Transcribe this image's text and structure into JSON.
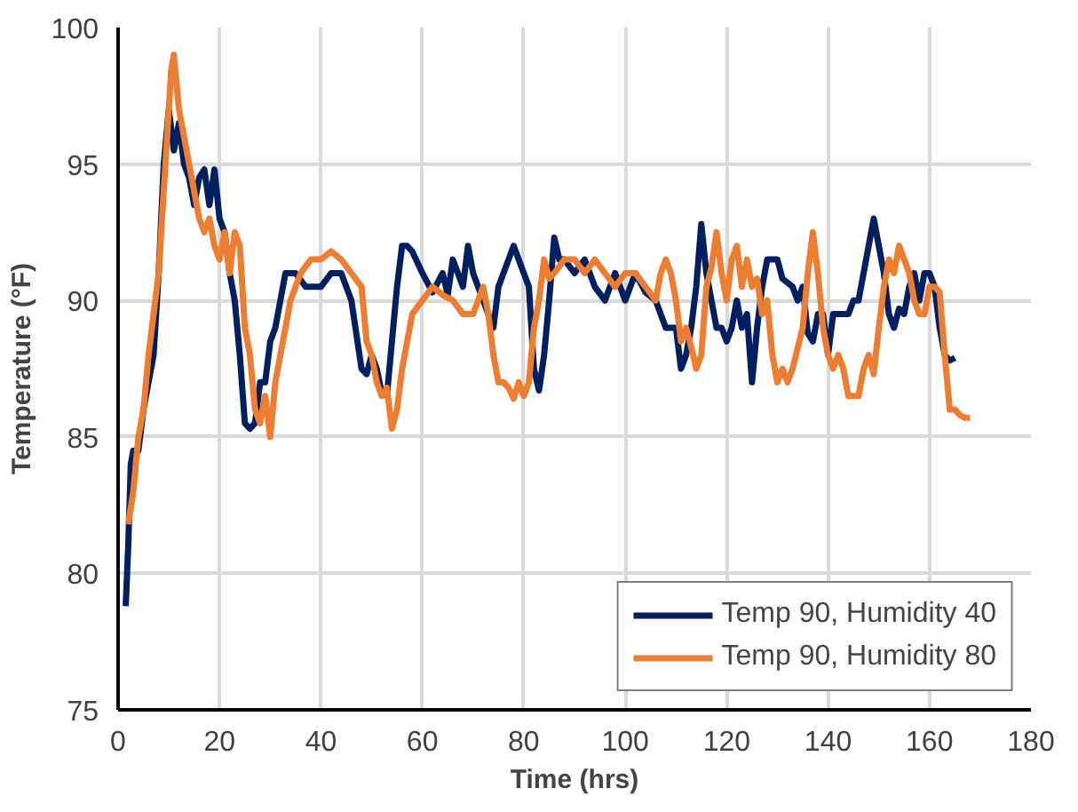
{
  "chart_data": {
    "type": "line",
    "xlabel": "Time (hrs)",
    "ylabel": "Temperature (°F)",
    "xlim": [
      0,
      180
    ],
    "xticks": [
      0,
      20,
      40,
      60,
      80,
      100,
      120,
      140,
      160,
      180
    ],
    "ylim": [
      75,
      100
    ],
    "yticks": [
      75,
      80,
      85,
      90,
      95,
      100
    ],
    "grid": true,
    "legend": "bottom right",
    "line_style": "solid",
    "series": [
      {
        "name": "Temp 90, Humidity 40",
        "color": "#002060",
        "x": [
          1.5,
          2,
          2.5,
          3,
          4,
          5,
          6,
          7,
          8,
          9,
          10,
          11,
          12,
          13,
          14,
          15,
          16,
          17,
          18,
          19,
          20,
          21,
          22,
          23,
          24,
          25,
          26,
          27,
          28,
          29,
          30,
          31,
          32,
          33,
          35,
          37,
          40,
          42,
          44,
          46,
          48,
          49,
          50,
          51,
          52,
          53,
          54,
          55,
          56,
          57,
          58,
          60,
          62,
          64,
          65,
          66,
          68,
          69,
          70,
          72,
          74,
          75,
          77,
          78,
          80,
          81,
          82,
          83,
          84,
          85,
          86,
          87,
          88,
          90,
          92,
          94,
          96,
          98,
          100,
          102,
          104,
          106,
          108,
          110,
          111,
          112,
          113,
          114,
          115,
          116,
          117,
          118,
          119,
          120,
          121,
          122,
          123,
          124,
          125,
          126,
          127,
          128,
          130,
          131,
          133,
          134,
          135,
          136,
          137,
          138,
          139,
          140,
          141,
          142,
          144,
          145,
          146,
          148,
          149,
          150,
          151,
          152,
          153,
          154,
          155,
          156,
          157,
          158,
          159,
          160,
          161,
          162,
          163,
          164,
          165
        ],
        "values": [
          78.8,
          81,
          84,
          84.5,
          84.5,
          86,
          87,
          88,
          91,
          95,
          97,
          95.5,
          96.5,
          95,
          94.5,
          93.5,
          94.5,
          94.8,
          93.5,
          94.8,
          93,
          92.5,
          91,
          90,
          88,
          85.5,
          85.3,
          85.5,
          87,
          87,
          88.5,
          89,
          90,
          91,
          91,
          90.5,
          90.5,
          91,
          91,
          90,
          87.5,
          87.3,
          88,
          87.5,
          86.6,
          86.5,
          88.5,
          90.5,
          92,
          92,
          91.8,
          91,
          90.3,
          91,
          90.2,
          91.5,
          90.5,
          92,
          91,
          90,
          89,
          90.5,
          91.5,
          92,
          91,
          90.5,
          87.5,
          86.7,
          88,
          90,
          92.3,
          91.5,
          91.5,
          91,
          91.5,
          90.5,
          90,
          91,
          90,
          91,
          90.3,
          90,
          89,
          89,
          87.5,
          88,
          89,
          90.5,
          92.8,
          91,
          90,
          89,
          89,
          88.5,
          89,
          90,
          89,
          89.5,
          87,
          89,
          90.5,
          91.5,
          91.5,
          90.8,
          90.5,
          90,
          90.5,
          88.8,
          88.5,
          89.5,
          89.5,
          88,
          89.5,
          89.5,
          89.5,
          90,
          90,
          92,
          93,
          92,
          91,
          89.5,
          89,
          89.7,
          89.5,
          90.5,
          91,
          90,
          91,
          91,
          90.5,
          89,
          88,
          87.8,
          87.9
        ]
      },
      {
        "name": "Temp 90, Humidity 80",
        "color": "#ed7d31",
        "x": [
          2,
          3,
          4,
          5,
          6,
          7,
          8,
          9,
          10,
          10.5,
          11,
          12,
          13,
          14,
          15,
          16,
          17,
          18,
          19,
          20,
          21,
          22,
          23,
          24,
          25,
          26,
          27,
          28,
          29,
          30,
          31,
          32,
          33,
          34,
          35,
          36,
          38,
          40,
          42,
          44,
          46,
          48,
          49,
          50,
          51,
          52,
          53,
          54,
          55,
          56,
          57,
          58,
          60,
          62,
          64,
          66,
          68,
          70,
          72,
          73,
          74,
          75,
          76,
          77,
          78,
          79,
          80,
          81,
          82,
          83,
          84,
          85,
          86,
          88,
          90,
          92,
          94,
          96,
          98,
          100,
          102,
          104,
          106,
          107,
          108,
          109,
          110,
          111,
          112,
          113,
          114,
          115,
          116,
          117,
          118,
          119,
          120,
          121,
          122,
          123,
          124,
          125,
          126,
          127,
          128,
          129,
          130,
          131,
          132,
          133,
          135,
          136,
          137,
          138,
          139,
          140,
          141,
          142,
          143,
          144,
          145,
          146,
          147,
          148,
          149,
          150,
          151,
          152,
          153,
          154,
          155,
          156,
          157,
          158,
          159,
          160,
          161,
          162,
          163,
          164,
          165,
          166,
          167,
          168
        ],
        "values": [
          81.8,
          83,
          85,
          86,
          88,
          89.5,
          91,
          94,
          97,
          98.5,
          99,
          97,
          96,
          95,
          94,
          93,
          92.5,
          93,
          92,
          91.5,
          92.5,
          91,
          92.5,
          92,
          89,
          88,
          86,
          85.5,
          86.5,
          85,
          87,
          88,
          89,
          90,
          90.5,
          91,
          91.5,
          91.5,
          91.8,
          91.5,
          91,
          90.5,
          88.5,
          88,
          87,
          86.5,
          86.8,
          85.3,
          86,
          87.5,
          88.5,
          89.5,
          90,
          90.5,
          90.2,
          90,
          89.5,
          89.5,
          90.5,
          89.5,
          88,
          87,
          87,
          86.8,
          86.4,
          87,
          86.5,
          87,
          89,
          90,
          91.5,
          90.8,
          91,
          91.5,
          91.5,
          91,
          91.5,
          91,
          90.5,
          91,
          91,
          90.5,
          90,
          91,
          91.5,
          91,
          90,
          88.5,
          89,
          88.3,
          87.5,
          88,
          90.5,
          91.2,
          92.5,
          91,
          90,
          91.5,
          92,
          90.5,
          91.5,
          90.5,
          90.8,
          89.5,
          90,
          88,
          87,
          87.5,
          87,
          87.5,
          89,
          91,
          92.5,
          91,
          89,
          88,
          87.5,
          88,
          87.5,
          86.5,
          86.5,
          86.5,
          87.5,
          88,
          87.3,
          89,
          90.5,
          91.5,
          91,
          92,
          91.5,
          91,
          90,
          89.5,
          89.5,
          90.5,
          90.5,
          90.3,
          88,
          86,
          86,
          85.8,
          85.7,
          85.7
        ]
      }
    ]
  }
}
